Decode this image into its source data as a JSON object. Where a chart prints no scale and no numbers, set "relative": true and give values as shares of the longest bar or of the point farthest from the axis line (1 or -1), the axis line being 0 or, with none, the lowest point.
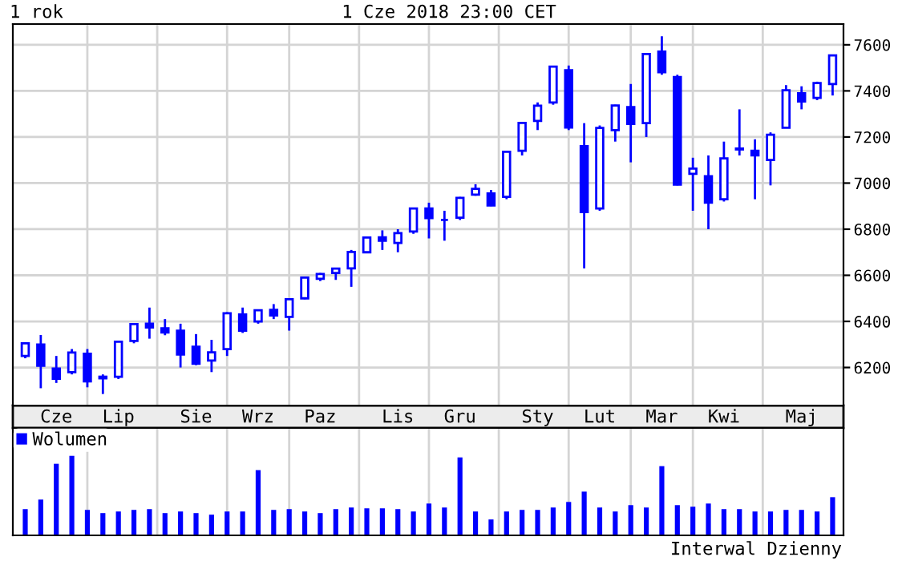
{
  "chart_data": [
    {
      "type": "candlestick",
      "title": "1 rok",
      "annotations": [
        "1 Cze 2018 23:00 CET",
        "Interwal Dzienny"
      ],
      "color": "#0000ff",
      "grid": true,
      "ylim": [
        6035,
        7690
      ],
      "yticks": [
        6200,
        6400,
        6600,
        6800,
        7000,
        7200,
        7400,
        7600
      ],
      "categories": [
        null,
        null,
        "Cze",
        null,
        null,
        null,
        "Lip",
        null,
        null,
        null,
        null,
        "Sie",
        null,
        null,
        null,
        "Wrz",
        null,
        null,
        null,
        "Paz",
        null,
        null,
        null,
        null,
        "Lis",
        null,
        null,
        null,
        "Gru",
        null,
        null,
        null,
        null,
        "Sty",
        null,
        null,
        null,
        "Lut",
        null,
        null,
        null,
        "Mar",
        null,
        null,
        null,
        "Kwi",
        null,
        null,
        null,
        null,
        "Maj",
        null,
        null
      ],
      "ohlc": [
        [
          6250,
          6310,
          6240,
          6305
        ],
        [
          6300,
          6341,
          6110,
          6208
        ],
        [
          6195,
          6250,
          6133,
          6151
        ],
        [
          6180,
          6280,
          6170,
          6265
        ],
        [
          6260,
          6280,
          6114,
          6140
        ],
        [
          6160,
          6170,
          6085,
          6153
        ],
        [
          6160,
          6315,
          6150,
          6312
        ],
        [
          6315,
          6390,
          6305,
          6388
        ],
        [
          6390,
          6460,
          6325,
          6374
        ],
        [
          6370,
          6410,
          6340,
          6352
        ],
        [
          6360,
          6390,
          6200,
          6256
        ],
        [
          6290,
          6345,
          6210,
          6216
        ],
        [
          6230,
          6320,
          6180,
          6266
        ],
        [
          6280,
          6440,
          6250,
          6435
        ],
        [
          6430,
          6460,
          6350,
          6360
        ],
        [
          6400,
          6450,
          6390,
          6448
        ],
        [
          6450,
          6475,
          6410,
          6426
        ],
        [
          6420,
          6500,
          6360,
          6496
        ],
        [
          6500,
          6590,
          6496,
          6590
        ],
        [
          6585,
          6610,
          6575,
          6606
        ],
        [
          6610,
          6630,
          6580,
          6629
        ],
        [
          6630,
          6710,
          6550,
          6701
        ],
        [
          6700,
          6765,
          6700,
          6764
        ],
        [
          6765,
          6795,
          6710,
          6750
        ],
        [
          6740,
          6800,
          6700,
          6783
        ],
        [
          6790,
          6890,
          6780,
          6890
        ],
        [
          6890,
          6915,
          6760,
          6848
        ],
        [
          6840,
          6880,
          6750,
          6840
        ],
        [
          6850,
          6940,
          6840,
          6936
        ],
        [
          6950,
          6995,
          6945,
          6975
        ],
        [
          6955,
          6970,
          6900,
          6903
        ],
        [
          6940,
          7140,
          6930,
          7136
        ],
        [
          7140,
          7265,
          7120,
          7261
        ],
        [
          7270,
          7350,
          7230,
          7336
        ],
        [
          7350,
          7506,
          7340,
          7505
        ],
        [
          7490,
          7510,
          7230,
          7241
        ],
        [
          7160,
          7260,
          6630,
          6874
        ],
        [
          6890,
          7250,
          6880,
          7239
        ],
        [
          7230,
          7340,
          7180,
          7337
        ],
        [
          7330,
          7430,
          7090,
          7257
        ],
        [
          7260,
          7560,
          7200,
          7560
        ],
        [
          7570,
          7637,
          7470,
          7481
        ],
        [
          7460,
          7470,
          6990,
          6993
        ],
        [
          7040,
          7110,
          6880,
          7063
        ],
        [
          7030,
          7120,
          6800,
          6915
        ],
        [
          6930,
          7180,
          6920,
          7107
        ],
        [
          7150,
          7320,
          7120,
          7146
        ],
        [
          7140,
          7190,
          6930,
          7120
        ],
        [
          7100,
          7220,
          6990,
          7210
        ],
        [
          7240,
          7425,
          7240,
          7403
        ],
        [
          7390,
          7420,
          7320,
          7354
        ],
        [
          7370,
          7440,
          7360,
          7434
        ],
        [
          7430,
          7555,
          7380,
          7554
        ]
      ]
    },
    {
      "type": "bar",
      "relative": true,
      "legend": "top left",
      "tick_labels": false,
      "grid": "x",
      "categories": [
        null,
        null,
        null,
        null,
        null,
        null,
        null,
        null,
        null,
        null,
        null,
        null,
        null,
        null,
        null,
        null,
        null,
        null,
        null,
        null,
        null,
        null,
        null,
        null,
        null,
        null,
        null,
        null,
        null,
        null,
        null,
        null,
        null,
        null,
        null,
        null,
        null,
        null,
        null,
        null,
        null,
        null,
        null,
        null,
        null,
        null,
        null,
        null,
        null,
        null,
        null,
        null,
        null
      ],
      "series": [
        {
          "name": "Wolumen",
          "color": "#0000ff",
          "values": [
            0.33,
            0.45,
            0.9,
            1.0,
            0.32,
            0.28,
            0.3,
            0.32,
            0.33,
            0.28,
            0.3,
            0.28,
            0.26,
            0.3,
            0.3,
            0.82,
            0.32,
            0.33,
            0.3,
            0.28,
            0.33,
            0.35,
            0.34,
            0.34,
            0.33,
            0.3,
            0.4,
            0.35,
            0.98,
            0.3,
            0.2,
            0.3,
            0.32,
            0.32,
            0.35,
            0.42,
            0.55,
            0.35,
            0.3,
            0.38,
            0.35,
            0.87,
            0.38,
            0.36,
            0.4,
            0.33,
            0.33,
            0.3,
            0.3,
            0.32,
            0.32,
            0.3,
            0.48
          ]
        }
      ]
    }
  ]
}
